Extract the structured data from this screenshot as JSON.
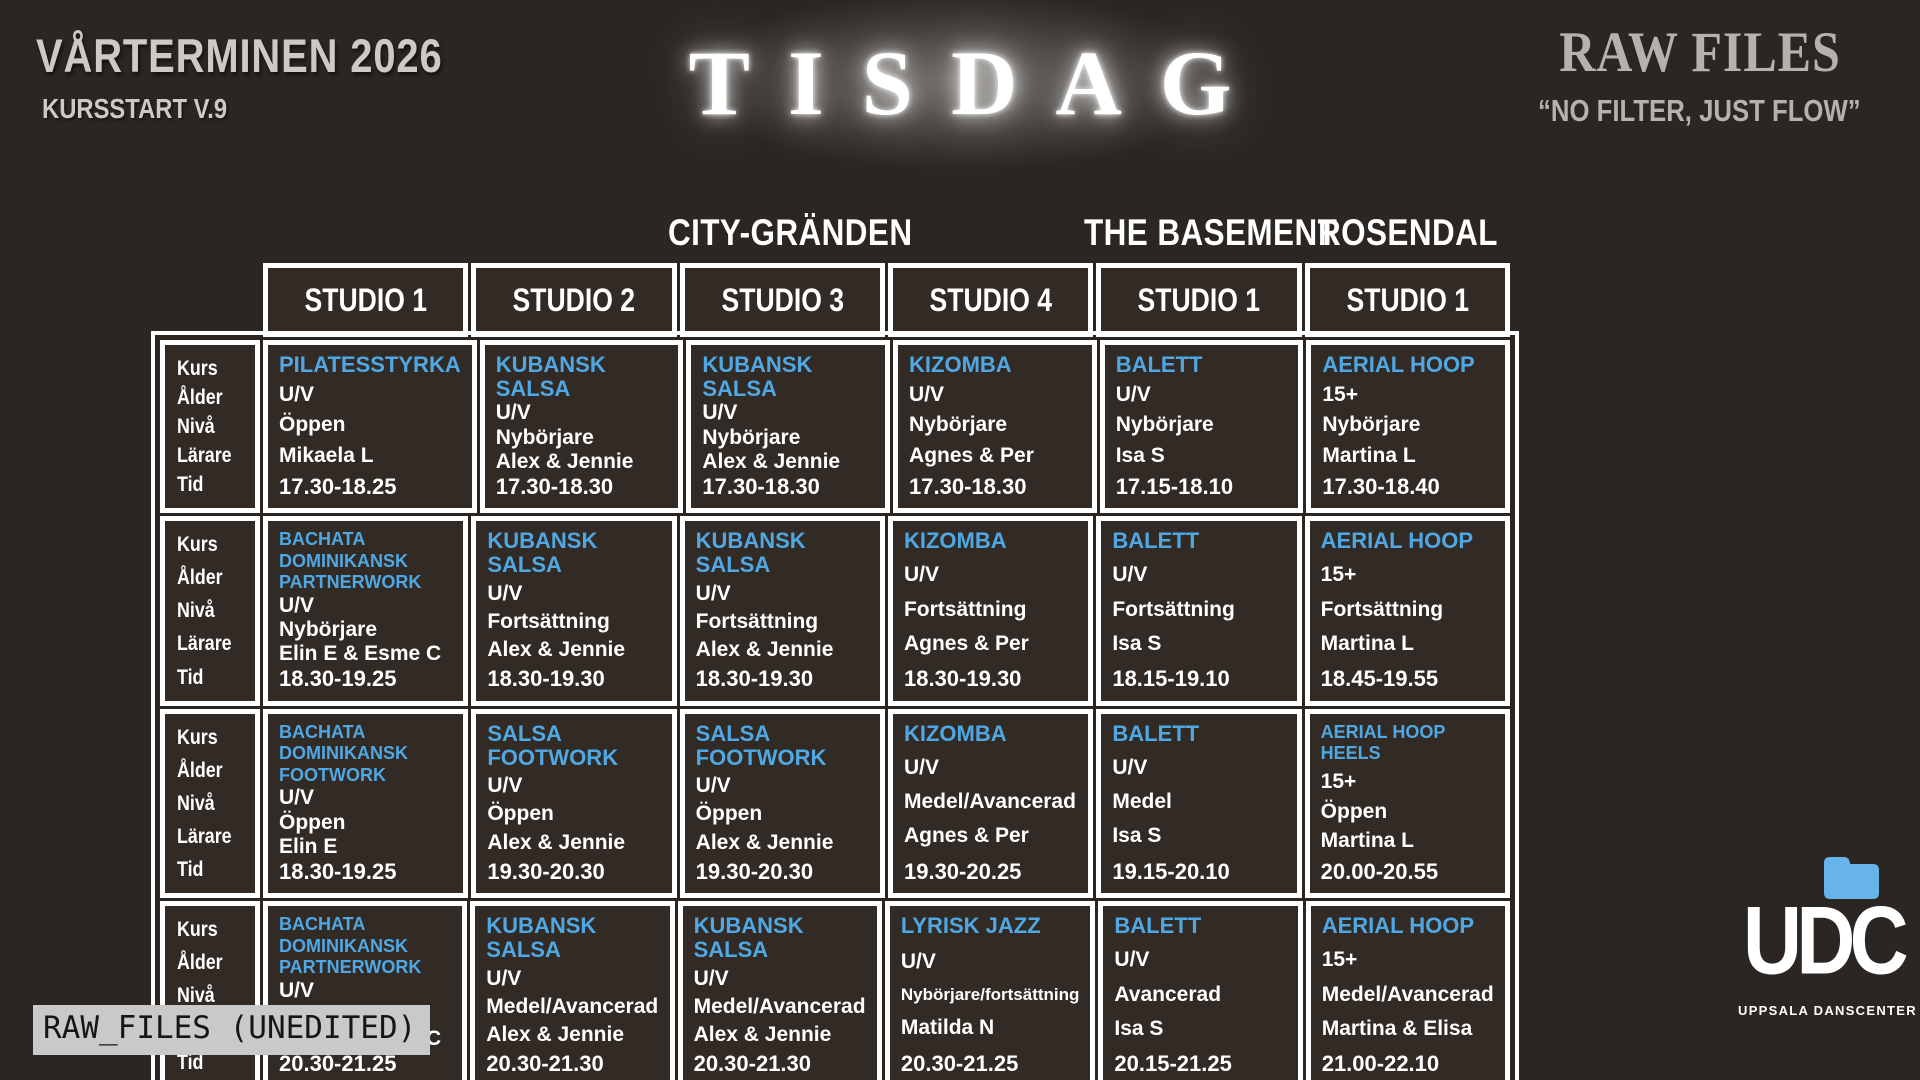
{
  "header": {
    "term": "VÅRTERMINEN 2026",
    "course_start": "KURSSTART V.9",
    "day": "TISDAG",
    "brand": "RAW FILES",
    "tagline": "“NO FILTER, JUST FLOW”"
  },
  "footer": {
    "badge": "RAW_FILES (UNEDITED)",
    "logo_text": "UDC",
    "logo_subtext": "UPPSALA DANSCENTER"
  },
  "colors": {
    "background": "#2b2621",
    "cell_background": "#322b25",
    "grid_line": "#ffffff",
    "accent_blue": "#4fa8e4",
    "folder_blue": "#66b4ea",
    "muted_gray": "#b5b2ad",
    "badge_background": "#c9c9c9"
  },
  "schedule": {
    "locations": [
      {
        "name": "CITY-GRÄNDEN",
        "span": 4
      },
      {
        "name": "THE BASEMENT",
        "span": 1
      },
      {
        "name": "ROSENDAL",
        "span": 1
      }
    ],
    "studios": [
      "STUDIO 1",
      "STUDIO 2",
      "STUDIO 3",
      "STUDIO 4",
      "STUDIO 1",
      "STUDIO 1"
    ],
    "row_labels": [
      "Kurs",
      "Ålder",
      "Nivå",
      "Lärare",
      "Tid"
    ],
    "rows": [
      {
        "classes": [
          {
            "kurs": "PILATESSTYRKA",
            "alder": "U/V",
            "niva": "Öppen",
            "larare": "Mikaela L",
            "tid": "17.30-18.25"
          },
          {
            "kurs": "KUBANSK SALSA",
            "alder": "U/V",
            "niva": "Nybörjare",
            "larare": "Alex & Jennie",
            "tid": "17.30-18.30"
          },
          {
            "kurs": "KUBANSK SALSA",
            "alder": "U/V",
            "niva": "Nybörjare",
            "larare": "Alex & Jennie",
            "tid": "17.30-18.30"
          },
          {
            "kurs": "KIZOMBA",
            "alder": "U/V",
            "niva": "Nybörjare",
            "larare": "Agnes & Per",
            "tid": "17.30-18.30"
          },
          {
            "kurs": "BALETT",
            "alder": "U/V",
            "niva": "Nybörjare",
            "larare": "Isa S",
            "tid": "17.15-18.10"
          },
          {
            "kurs": "AERIAL HOOP",
            "alder": "15+",
            "niva": "Nybörjare",
            "larare": "Martina L",
            "tid": "17.30-18.40"
          }
        ]
      },
      {
        "classes": [
          {
            "kurs": "BACHATA DOMINIKANSK PARTNERWORK",
            "alder": "U/V",
            "niva": "Nybörjare",
            "larare": "Elin E & Esme C",
            "tid": "18.30-19.25"
          },
          {
            "kurs": "KUBANSK SALSA",
            "alder": "U/V",
            "niva": "Fortsättning",
            "larare": "Alex & Jennie",
            "tid": "18.30-19.30"
          },
          {
            "kurs": "KUBANSK SALSA",
            "alder": "U/V",
            "niva": "Fortsättning",
            "larare": "Alex & Jennie",
            "tid": "18.30-19.30"
          },
          {
            "kurs": "KIZOMBA",
            "alder": "U/V",
            "niva": "Fortsättning",
            "larare": "Agnes & Per",
            "tid": "18.30-19.30"
          },
          {
            "kurs": "BALETT",
            "alder": "U/V",
            "niva": "Fortsättning",
            "larare": "Isa S",
            "tid": "18.15-19.10"
          },
          {
            "kurs": "AERIAL HOOP",
            "alder": "15+",
            "niva": "Fortsättning",
            "larare": "Martina L",
            "tid": "18.45-19.55"
          }
        ]
      },
      {
        "classes": [
          {
            "kurs": "BACHATA DOMINIKANSK FOOTWORK",
            "alder": "U/V",
            "niva": "Öppen",
            "larare": "Elin E",
            "tid": "18.30-19.25"
          },
          {
            "kurs": "SALSA FOOTWORK",
            "alder": "U/V",
            "niva": "Öppen",
            "larare": "Alex & Jennie",
            "tid": "19.30-20.30"
          },
          {
            "kurs": "SALSA FOOTWORK",
            "alder": "U/V",
            "niva": "Öppen",
            "larare": "Alex & Jennie",
            "tid": "19.30-20.30"
          },
          {
            "kurs": "KIZOMBA",
            "alder": "U/V",
            "niva": "Medel/Avancerad",
            "larare": "Agnes & Per",
            "tid": "19.30-20.25"
          },
          {
            "kurs": "BALETT",
            "alder": "U/V",
            "niva": "Medel",
            "larare": "Isa S",
            "tid": "19.15-20.10"
          },
          {
            "kurs": "AERIAL HOOP HEELS",
            "alder": "15+",
            "niva": "Öppen",
            "larare": "Martina L",
            "tid": "20.00-20.55"
          }
        ]
      },
      {
        "classes": [
          {
            "kurs": "BACHATA DOMINIKANSK PARTNERWORK",
            "alder": "U/V",
            "niva": "Fortsättning",
            "larare": "Elin E & Esme C",
            "tid": "20.30-21.25"
          },
          {
            "kurs": "KUBANSK SALSA",
            "alder": "U/V",
            "niva": "Medel/Avancerad",
            "larare": "Alex & Jennie",
            "tid": "20.30-21.30"
          },
          {
            "kurs": "KUBANSK SALSA",
            "alder": "U/V",
            "niva": "Medel/Avancerad",
            "larare": "Alex & Jennie",
            "tid": "20.30-21.30"
          },
          {
            "kurs": "LYRISK JAZZ",
            "alder": "U/V",
            "niva": "Nybörjare/fortsättning",
            "larare": "Matilda N",
            "tid": "20.30-21.25"
          },
          {
            "kurs": "BALETT",
            "alder": "U/V",
            "niva": "Avancerad",
            "larare": "Isa S",
            "tid": "20.15-21.25"
          },
          {
            "kurs": "AERIAL HOOP",
            "alder": "15+",
            "niva": "Medel/Avancerad",
            "larare": "Martina & Elisa",
            "tid": "21.00-22.10"
          }
        ]
      }
    ]
  }
}
